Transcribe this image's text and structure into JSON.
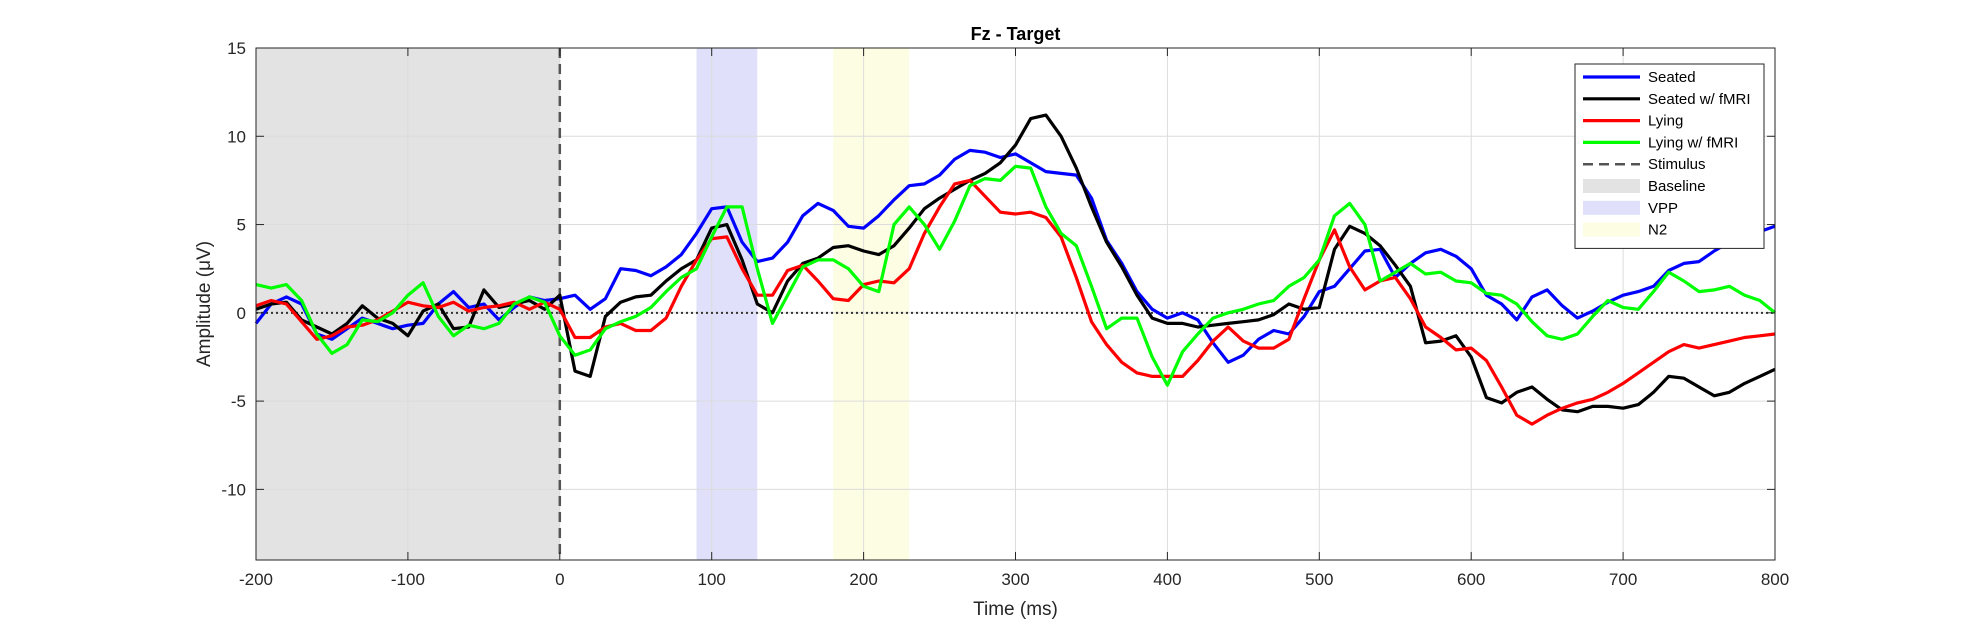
{
  "chart_data": {
    "type": "line",
    "title": "Fz - Target",
    "xlabel": "Time (ms)",
    "ylabel": "Amplitude (μV)",
    "xlim": [
      -200,
      800
    ],
    "ylim": [
      -14,
      15
    ],
    "xticks": [
      -200,
      -100,
      0,
      100,
      200,
      300,
      400,
      500,
      600,
      700,
      800
    ],
    "yticks": [
      -10,
      -5,
      0,
      5,
      10,
      15
    ],
    "grid": true,
    "legend_position": "top-right",
    "bands": [
      {
        "name": "Baseline",
        "x": [
          -200,
          0
        ],
        "color": "#e3e3e3"
      },
      {
        "name": "VPP",
        "x": [
          90,
          130
        ],
        "color": "#e0e0fb"
      },
      {
        "name": "N2",
        "x": [
          180,
          230
        ],
        "color": "#fcfde2"
      }
    ],
    "stimulus": {
      "name": "Stimulus",
      "x": 0
    },
    "series": [
      {
        "name": "Seated",
        "color": "#0000ff",
        "x": [
          -200,
          -190,
          -180,
          -170,
          -160,
          -150,
          -140,
          -130,
          -120,
          -110,
          -100,
          -90,
          -80,
          -70,
          -60,
          -50,
          -40,
          -30,
          -20,
          -10,
          0,
          10,
          20,
          30,
          40,
          50,
          60,
          70,
          80,
          90,
          100,
          110,
          120,
          130,
          140,
          150,
          160,
          170,
          180,
          190,
          200,
          210,
          220,
          230,
          240,
          250,
          260,
          270,
          280,
          290,
          300,
          310,
          320,
          330,
          340,
          350,
          360,
          370,
          380,
          390,
          400,
          410,
          420,
          430,
          440,
          450,
          460,
          470,
          480,
          490,
          500,
          510,
          520,
          530,
          540,
          550,
          560,
          570,
          580,
          590,
          600,
          610,
          620,
          630,
          640,
          650,
          660,
          670,
          680,
          690,
          700,
          710,
          720,
          730,
          740,
          750,
          760,
          770,
          780,
          790,
          800
        ],
        "values": [
          -0.6,
          0.5,
          0.9,
          0.5,
          -1.2,
          -1.5,
          -0.9,
          -0.3,
          -0.6,
          -0.9,
          -0.7,
          -0.6,
          0.5,
          1.2,
          0.3,
          0.5,
          -0.4,
          0.3,
          0.9,
          0.7,
          0.8,
          1.0,
          0.2,
          0.8,
          2.5,
          2.4,
          2.1,
          2.6,
          3.3,
          4.5,
          5.9,
          6.0,
          4.0,
          2.9,
          3.1,
          4.0,
          5.5,
          6.2,
          5.8,
          4.9,
          4.8,
          5.5,
          6.4,
          7.2,
          7.3,
          7.8,
          8.7,
          9.2,
          9.1,
          8.8,
          9.0,
          8.5,
          8.0,
          7.9,
          7.8,
          6.5,
          4.1,
          2.8,
          1.2,
          0.2,
          -0.3,
          0.0,
          -0.4,
          -1.7,
          -2.8,
          -2.4,
          -1.5,
          -1.0,
          -1.2,
          -0.2,
          1.2,
          1.5,
          2.5,
          3.5,
          3.6,
          2.0,
          2.8,
          3.4,
          3.6,
          3.2,
          2.5,
          1.0,
          0.5,
          -0.4,
          0.9,
          1.3,
          0.4,
          -0.3,
          0.1,
          0.6,
          1.0,
          1.2,
          1.5,
          2.4,
          2.8,
          2.9,
          3.5,
          4.0,
          4.6,
          4.6,
          4.9
        ]
      },
      {
        "name": "Seated w/ fMRI",
        "color": "#000000",
        "x": [
          -200,
          -190,
          -180,
          -170,
          -160,
          -150,
          -140,
          -130,
          -120,
          -110,
          -100,
          -90,
          -80,
          -70,
          -60,
          -50,
          -40,
          -30,
          -20,
          -10,
          0,
          10,
          20,
          30,
          40,
          50,
          60,
          70,
          80,
          90,
          100,
          110,
          120,
          130,
          140,
          150,
          160,
          170,
          180,
          190,
          200,
          210,
          220,
          230,
          240,
          250,
          260,
          270,
          280,
          290,
          300,
          310,
          320,
          330,
          340,
          350,
          360,
          370,
          380,
          390,
          400,
          410,
          420,
          430,
          440,
          450,
          460,
          470,
          480,
          490,
          500,
          510,
          520,
          530,
          540,
          550,
          560,
          570,
          580,
          590,
          600,
          610,
          620,
          630,
          640,
          650,
          660,
          670,
          680,
          690,
          700,
          710,
          720,
          730,
          740,
          750,
          760,
          770,
          780,
          790,
          800
        ],
        "values": [
          0.2,
          0.5,
          0.6,
          -0.4,
          -0.8,
          -1.2,
          -0.6,
          0.4,
          -0.3,
          -0.6,
          -1.3,
          0.1,
          0.5,
          -0.9,
          -0.8,
          1.3,
          0.3,
          0.5,
          0.7,
          0.2,
          1.0,
          -3.3,
          -3.6,
          -0.2,
          0.6,
          0.9,
          1.0,
          1.8,
          2.5,
          3.0,
          4.8,
          5.0,
          3.0,
          0.5,
          0.0,
          1.8,
          2.8,
          3.1,
          3.7,
          3.8,
          3.5,
          3.3,
          3.8,
          4.8,
          5.9,
          6.5,
          7.0,
          7.5,
          7.9,
          8.5,
          9.5,
          11.0,
          11.2,
          10.0,
          8.2,
          6.0,
          4.0,
          2.6,
          1.0,
          -0.3,
          -0.6,
          -0.6,
          -0.8,
          -0.7,
          -0.6,
          -0.5,
          -0.4,
          -0.1,
          0.5,
          0.2,
          0.3,
          3.6,
          4.9,
          4.5,
          3.8,
          2.7,
          1.5,
          -1.7,
          -1.6,
          -1.3,
          -2.5,
          -4.8,
          -5.1,
          -4.5,
          -4.2,
          -4.9,
          -5.5,
          -5.6,
          -5.3,
          -5.3,
          -5.4,
          -5.2,
          -4.5,
          -3.6,
          -3.7,
          -4.2,
          -4.7,
          -4.5,
          -4.0,
          -3.6,
          -3.2
        ]
      },
      {
        "name": "Lying",
        "color": "#ff0000",
        "x": [
          -200,
          -190,
          -180,
          -170,
          -160,
          -150,
          -140,
          -130,
          -120,
          -110,
          -100,
          -90,
          -80,
          -70,
          -60,
          -50,
          -40,
          -30,
          -20,
          -10,
          0,
          10,
          20,
          30,
          40,
          50,
          60,
          70,
          80,
          90,
          100,
          110,
          120,
          130,
          140,
          150,
          160,
          170,
          180,
          190,
          200,
          210,
          220,
          230,
          240,
          250,
          260,
          270,
          280,
          290,
          300,
          310,
          320,
          330,
          340,
          350,
          360,
          370,
          380,
          390,
          400,
          410,
          420,
          430,
          440,
          450,
          460,
          470,
          480,
          490,
          500,
          510,
          520,
          530,
          540,
          550,
          560,
          570,
          580,
          590,
          600,
          610,
          620,
          630,
          640,
          650,
          660,
          670,
          680,
          690,
          700,
          710,
          720,
          730,
          740,
          750,
          760,
          770,
          780,
          790,
          800
        ],
        "values": [
          0.4,
          0.7,
          0.5,
          -0.5,
          -1.5,
          -1.3,
          -0.8,
          -0.7,
          -0.4,
          0.1,
          0.6,
          0.4,
          0.3,
          0.6,
          0.1,
          0.3,
          0.4,
          0.6,
          0.2,
          0.6,
          0.2,
          -1.4,
          -1.4,
          -0.8,
          -0.6,
          -1.0,
          -1.0,
          -0.3,
          1.5,
          3.0,
          4.2,
          4.3,
          2.5,
          1.0,
          1.0,
          2.4,
          2.7,
          1.8,
          0.8,
          0.7,
          1.6,
          1.8,
          1.7,
          2.5,
          4.5,
          6.0,
          7.3,
          7.5,
          6.6,
          5.7,
          5.6,
          5.7,
          5.4,
          4.3,
          2.0,
          -0.5,
          -1.8,
          -2.8,
          -3.4,
          -3.6,
          -3.6,
          -3.6,
          -2.7,
          -1.6,
          -0.8,
          -1.6,
          -2.0,
          -2.0,
          -1.5,
          0.8,
          3.0,
          4.7,
          2.6,
          1.3,
          1.8,
          2.0,
          0.8,
          -0.8,
          -1.4,
          -2.1,
          -2.0,
          -2.7,
          -4.2,
          -5.8,
          -6.3,
          -5.8,
          -5.4,
          -5.1,
          -4.9,
          -4.5,
          -4.0,
          -3.4,
          -2.8,
          -2.2,
          -1.8,
          -2.0,
          -1.8,
          -1.6,
          -1.4,
          -1.3,
          -1.2
        ]
      },
      {
        "name": "Lying w/ fMRI",
        "color": "#00ff00",
        "x": [
          -200,
          -190,
          -180,
          -170,
          -160,
          -150,
          -140,
          -130,
          -120,
          -110,
          -100,
          -90,
          -80,
          -70,
          -60,
          -50,
          -40,
          -30,
          -20,
          -10,
          0,
          10,
          20,
          30,
          40,
          50,
          60,
          70,
          80,
          90,
          100,
          110,
          120,
          130,
          140,
          150,
          160,
          170,
          180,
          190,
          200,
          210,
          220,
          230,
          240,
          250,
          260,
          270,
          280,
          290,
          300,
          310,
          320,
          330,
          340,
          350,
          360,
          370,
          380,
          390,
          400,
          410,
          420,
          430,
          440,
          450,
          460,
          470,
          480,
          490,
          500,
          510,
          520,
          530,
          540,
          550,
          560,
          570,
          580,
          590,
          600,
          610,
          620,
          630,
          640,
          650,
          660,
          670,
          680,
          690,
          700,
          710,
          720,
          730,
          740,
          750,
          760,
          770,
          780,
          790,
          800
        ],
        "values": [
          1.6,
          1.4,
          1.6,
          0.7,
          -1.2,
          -2.3,
          -1.8,
          -0.4,
          -0.5,
          0.0,
          1.0,
          1.7,
          -0.2,
          -1.3,
          -0.7,
          -0.9,
          -0.6,
          0.5,
          0.9,
          0.6,
          -1.3,
          -2.4,
          -2.1,
          -0.9,
          -0.5,
          -0.2,
          0.3,
          1.2,
          2.0,
          2.5,
          4.3,
          6.0,
          6.0,
          2.5,
          -0.6,
          1.0,
          2.6,
          3.0,
          3.0,
          2.5,
          1.5,
          1.2,
          5.0,
          6.0,
          5.0,
          3.6,
          5.2,
          7.2,
          7.6,
          7.5,
          8.3,
          8.2,
          6.0,
          4.5,
          3.8,
          1.5,
          -0.9,
          -0.3,
          -0.3,
          -2.5,
          -4.1,
          -2.2,
          -1.2,
          -0.3,
          0.0,
          0.2,
          0.5,
          0.7,
          1.5,
          2.0,
          3.0,
          5.5,
          6.2,
          5.0,
          1.8,
          2.3,
          2.8,
          2.2,
          2.3,
          1.8,
          1.7,
          1.1,
          1.0,
          0.5,
          -0.5,
          -1.3,
          -1.5,
          -1.2,
          -0.2,
          0.7,
          0.3,
          0.2,
          1.2,
          2.3,
          1.8,
          1.2,
          1.3,
          1.5,
          1.0,
          0.7,
          0.0
        ]
      }
    ]
  }
}
